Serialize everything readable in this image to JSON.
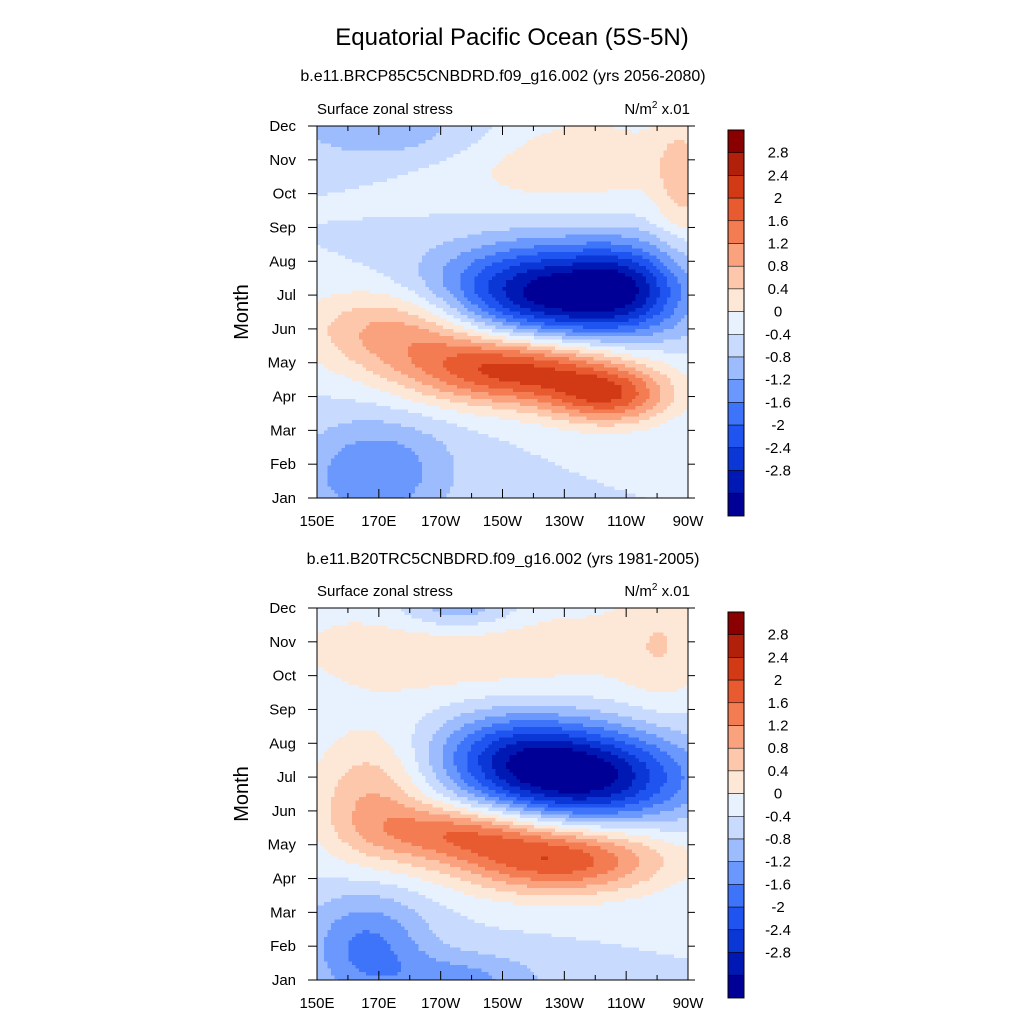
{
  "title": "Equatorial Pacific Ocean (5S-5N)",
  "chart_data": [
    {
      "type": "heatmap",
      "subtitle": "b.e11.BRCP85C5CNBDRD.f09_g16.002 (yrs 2056-2080)",
      "left_label": "Surface zonal stress",
      "units_label": "N/m",
      "units_sup": "2",
      "units_scale": "x.01",
      "xlabel": "",
      "ylabel": "Month",
      "x_ticks": [
        "150E",
        "170E",
        "170W",
        "150W",
        "130W",
        "110W",
        "90W"
      ],
      "y_ticks": [
        "Jan",
        "Feb",
        "Mar",
        "Apr",
        "May",
        "Jun",
        "Jul",
        "Aug",
        "Sep",
        "Oct",
        "Nov",
        "Dec"
      ],
      "xlim_deg_east": [
        150,
        270
      ],
      "colorbar_labels": [
        "2.8",
        "2.4",
        "2",
        "1.6",
        "1.2",
        "0.8",
        "0.4",
        "0",
        "-0.4",
        "-0.8",
        "-1.2",
        "-1.6",
        "-2",
        "-2.4",
        "-2.8"
      ],
      "features": [
        {
          "kind": "min",
          "value": -3.0,
          "lon_east": 224,
          "month": 7.0
        },
        {
          "kind": "max",
          "value": 2.5,
          "lon_east": 217,
          "month": 4.8
        }
      ]
    },
    {
      "type": "heatmap",
      "subtitle": "b.e11.B20TRC5CNBDRD.f09_g16.002 (yrs 1981-2005)",
      "left_label": "Surface zonal stress",
      "units_label": "N/m",
      "units_sup": "2",
      "units_scale": "x.01",
      "xlabel": "",
      "ylabel": "Month",
      "x_ticks": [
        "150E",
        "170E",
        "170W",
        "150W",
        "130W",
        "110W",
        "90W"
      ],
      "y_ticks": [
        "Jan",
        "Feb",
        "Mar",
        "Apr",
        "May",
        "Jun",
        "Jul",
        "Aug",
        "Sep",
        "Oct",
        "Nov",
        "Dec"
      ],
      "xlim_deg_east": [
        150,
        270
      ],
      "colorbar_labels": [
        "2.8",
        "2.4",
        "2",
        "1.6",
        "1.2",
        "0.8",
        "0.4",
        "0",
        "-0.4",
        "-0.8",
        "-1.2",
        "-1.6",
        "-2",
        "-2.4",
        "-2.8"
      ],
      "features": [
        {
          "kind": "min",
          "value": -2.9,
          "lon_east": 235,
          "month": 6.9
        },
        {
          "kind": "max",
          "value": 2.3,
          "lon_east": 225,
          "month": 4.5
        }
      ]
    }
  ],
  "colors": {
    "levels": [
      "#000096",
      "#0018b4",
      "#0a37d6",
      "#1f54f0",
      "#3d74fa",
      "#6a98fc",
      "#9cbcfd",
      "#c8dafd",
      "#e8f1fe",
      "#fde8d8",
      "#fcc7ab",
      "#f9a27d",
      "#f47c52",
      "#e85a30",
      "#d23a16",
      "#b1200b",
      "#8a0000"
    ]
  }
}
